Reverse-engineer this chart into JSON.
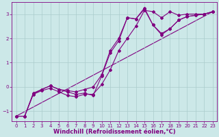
{
  "xlabel": "Windchill (Refroidissement éolien,°C)",
  "background_color": "#cce8e8",
  "line_color": "#800080",
  "grid_color": "#aacccc",
  "xlim": [
    -0.5,
    23.5
  ],
  "ylim": [
    -1.4,
    3.5
  ],
  "yticks": [
    -1,
    0,
    1,
    2,
    3
  ],
  "xticks": [
    0,
    1,
    2,
    3,
    4,
    5,
    6,
    7,
    8,
    9,
    10,
    11,
    12,
    13,
    14,
    15,
    16,
    17,
    18,
    19,
    20,
    21,
    22,
    23
  ],
  "line1_x": [
    0,
    1,
    2,
    3,
    4,
    5,
    6,
    7,
    8,
    9,
    10,
    11,
    12,
    13,
    14,
    15,
    16,
    17,
    18,
    19,
    20,
    21,
    22,
    23
  ],
  "line1_y": [
    -1.2,
    -1.2,
    -0.25,
    -0.1,
    0.05,
    -0.1,
    -0.2,
    -0.3,
    -0.25,
    -0.35,
    0.45,
    1.4,
    1.9,
    2.85,
    2.8,
    3.25,
    2.55,
    2.15,
    2.4,
    2.75,
    2.9,
    2.95,
    3.0,
    3.1
  ],
  "line2_x": [
    0,
    1,
    2,
    3,
    4,
    5,
    6,
    7,
    8,
    9,
    10,
    11,
    12,
    13,
    14,
    15,
    16,
    17,
    18,
    19,
    20,
    21,
    22,
    23
  ],
  "line2_y": [
    -1.2,
    -1.2,
    -0.3,
    -0.15,
    -0.05,
    -0.2,
    -0.35,
    -0.4,
    -0.3,
    -0.3,
    0.1,
    0.7,
    1.5,
    2.0,
    2.5,
    3.15,
    3.1,
    2.85,
    3.1,
    2.95,
    3.0,
    3.0,
    3.0,
    3.1
  ],
  "line3_x": [
    0,
    1,
    2,
    3,
    4,
    5,
    6,
    7,
    8,
    9,
    10,
    11,
    12,
    13,
    14,
    15,
    16,
    17,
    18,
    19,
    20,
    21,
    22,
    23
  ],
  "line3_y": [
    -1.2,
    -1.2,
    -0.3,
    -0.1,
    0.05,
    -0.1,
    -0.15,
    -0.2,
    -0.1,
    0.0,
    0.5,
    1.5,
    2.0,
    2.85,
    2.8,
    3.2,
    2.55,
    2.2,
    2.4,
    2.75,
    2.9,
    2.95,
    3.0,
    3.1
  ],
  "line4_x": [
    0,
    23
  ],
  "line4_y": [
    -1.2,
    3.1
  ],
  "marker": "D",
  "markersize": 2.0,
  "linewidth": 0.8,
  "tick_label_fontsize": 5.0,
  "xlabel_fontsize": 6.0
}
